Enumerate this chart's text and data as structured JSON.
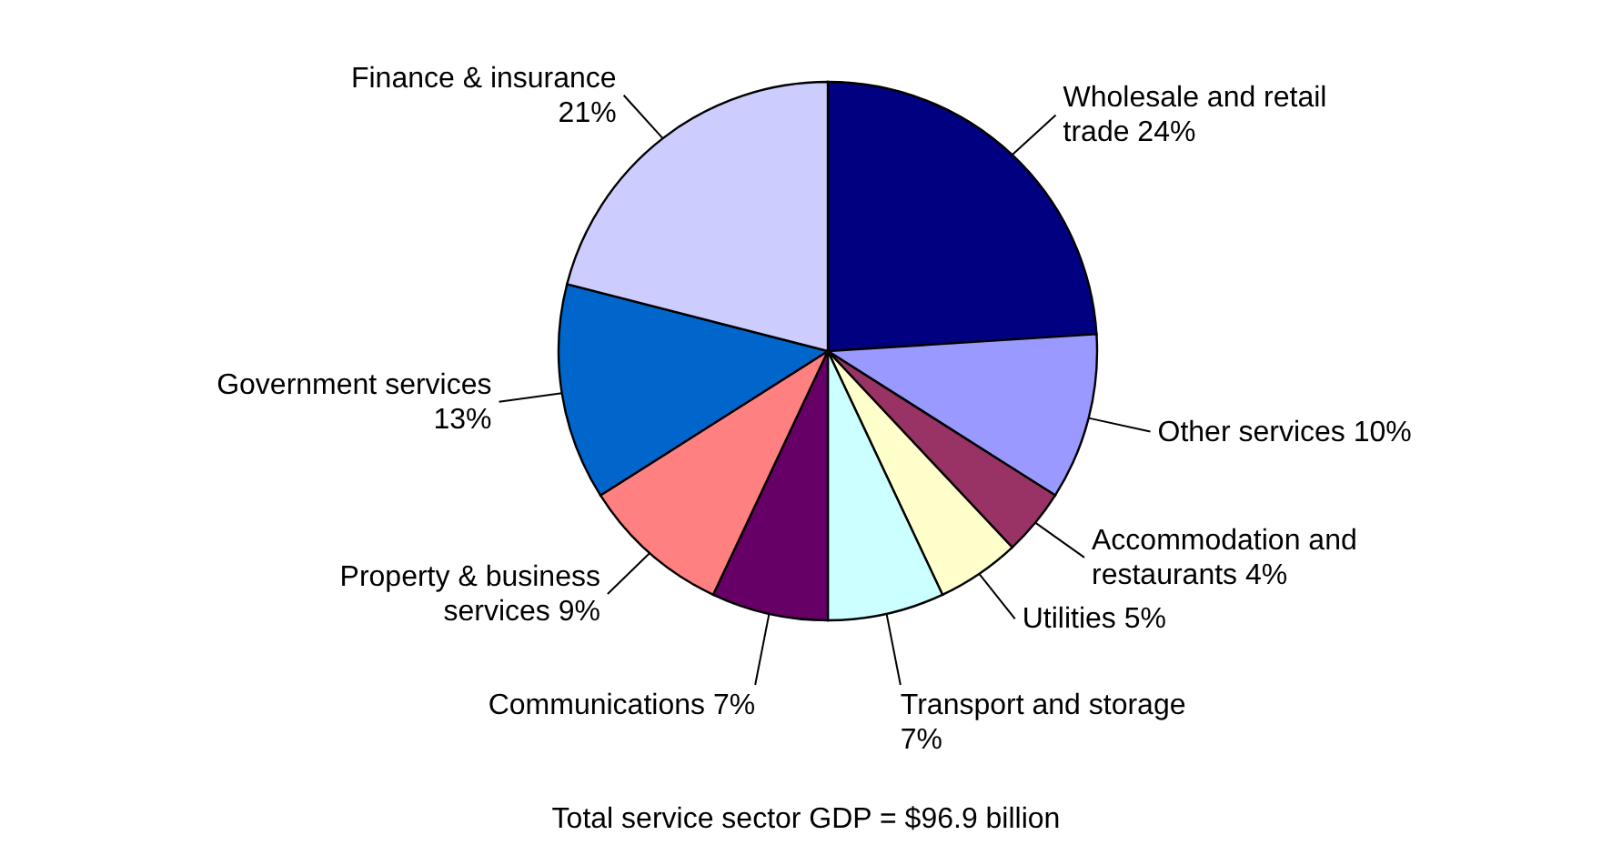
{
  "chart_data": {
    "type": "pie",
    "categories": [
      "Wholesale and retail trade",
      "Other services",
      "Accommodation and restaurants",
      "Utilities",
      "Transport and storage",
      "Communications",
      "Property & business services",
      "Government services",
      "Finance & insurance"
    ],
    "values": [
      24,
      10,
      4,
      5,
      7,
      7,
      9,
      13,
      21
    ],
    "colors": [
      "#000080",
      "#9999ff",
      "#993366",
      "#ffffcc",
      "#ccffff",
      "#660066",
      "#ff8080",
      "#0066cc",
      "#ccccff"
    ],
    "value_labels": [
      "24%",
      "10%",
      "4%",
      "5%",
      "7%",
      "7%",
      "9%",
      "13%",
      "21%"
    ],
    "annotations": [
      "Total service sector GDP = $96.9 billion"
    ]
  }
}
